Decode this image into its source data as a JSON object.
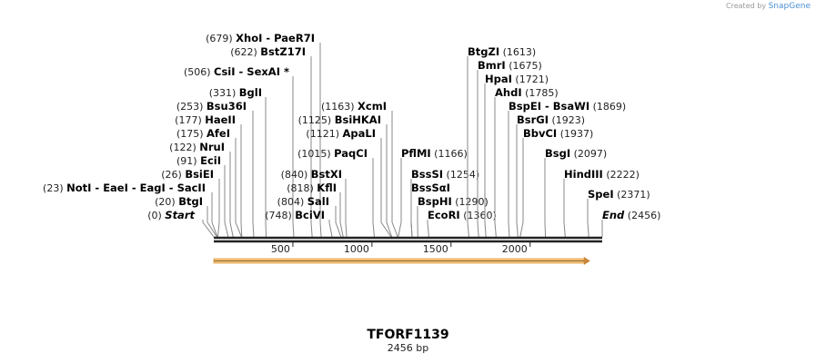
{
  "brand": {
    "prefix": "Created by",
    "name": "SnapGene"
  },
  "map": {
    "title": "TFORF1139",
    "length_label": "2456 bp",
    "length": 2456,
    "ticks": [
      500,
      1000,
      1500,
      2000
    ],
    "feature_color": "#f5c27a"
  },
  "sites": [
    {
      "name": "XhoI  - PaeR7I",
      "pos": 679,
      "num": "(679)"
    },
    {
      "name": "BstZ17I",
      "pos": 622,
      "num": "(622)"
    },
    {
      "name": "CsiI  - SexAI *",
      "pos": 506,
      "num": "(506)"
    },
    {
      "name": "BglI",
      "pos": 331,
      "num": "(331)"
    },
    {
      "name": "Bsu36I",
      "pos": 253,
      "num": "(253)"
    },
    {
      "name": "HaeII",
      "pos": 177,
      "num": "(177)"
    },
    {
      "name": "AfeI",
      "pos": 175,
      "num": "(175)"
    },
    {
      "name": "NruI",
      "pos": 122,
      "num": "(122)"
    },
    {
      "name": "EciI",
      "pos": 91,
      "num": "(91)"
    },
    {
      "name": "BsiEI",
      "pos": 26,
      "num": "(26)"
    },
    {
      "name": "NotI  - EaeI  - EagI  - SacII",
      "pos": 23,
      "num": "(23)"
    },
    {
      "name": "BtgI",
      "pos": 20,
      "num": "(20)"
    },
    {
      "name": "Start",
      "pos": 0,
      "num": "(0)",
      "italic": true
    },
    {
      "name": "XcmI",
      "pos": 1163,
      "num": "(1163)"
    },
    {
      "name": "BsiHKAI",
      "pos": 1125,
      "num": "(1125)"
    },
    {
      "name": "ApaLI",
      "pos": 1121,
      "num": "(1121)"
    },
    {
      "name": "PaqCI",
      "pos": 1015,
      "num": "(1015)"
    },
    {
      "name": "BstXI",
      "pos": 840,
      "num": "(840)"
    },
    {
      "name": "KflI",
      "pos": 818,
      "num": "(818)"
    },
    {
      "name": "SalI",
      "pos": 804,
      "num": "(804)"
    },
    {
      "name": "BciVI",
      "pos": 748,
      "num": "(748)"
    },
    {
      "name": "PflMI",
      "pos": 1166,
      "num": "(1166)"
    },
    {
      "name": "BssSI",
      "pos": 1254,
      "num": "(1254)"
    },
    {
      "name": "BssSαI",
      "pos": 1254,
      "num": ""
    },
    {
      "name": "BspHI",
      "pos": 1290,
      "num": "(1290)"
    },
    {
      "name": "EcoRI",
      "pos": 1360,
      "num": "(1360)"
    },
    {
      "name": "BtgZI",
      "pos": 1613,
      "num": "(1613)"
    },
    {
      "name": "BmrI",
      "pos": 1675,
      "num": "(1675)"
    },
    {
      "name": "HpaI",
      "pos": 1721,
      "num": "(1721)"
    },
    {
      "name": "AhdI",
      "pos": 1785,
      "num": "(1785)"
    },
    {
      "name": "BspEI  - BsaWI",
      "pos": 1869,
      "num": "(1869)"
    },
    {
      "name": "BsrGI",
      "pos": 1923,
      "num": "(1923)"
    },
    {
      "name": "BbvCI",
      "pos": 1937,
      "num": "(1937)"
    },
    {
      "name": "BsgI",
      "pos": 2097,
      "num": "(2097)"
    },
    {
      "name": "HindIII",
      "pos": 2222,
      "num": "(2222)"
    },
    {
      "name": "SpeI",
      "pos": 2371,
      "num": "(2371)"
    },
    {
      "name": "End",
      "pos": 2456,
      "num": "(2456)",
      "italic": true
    }
  ]
}
